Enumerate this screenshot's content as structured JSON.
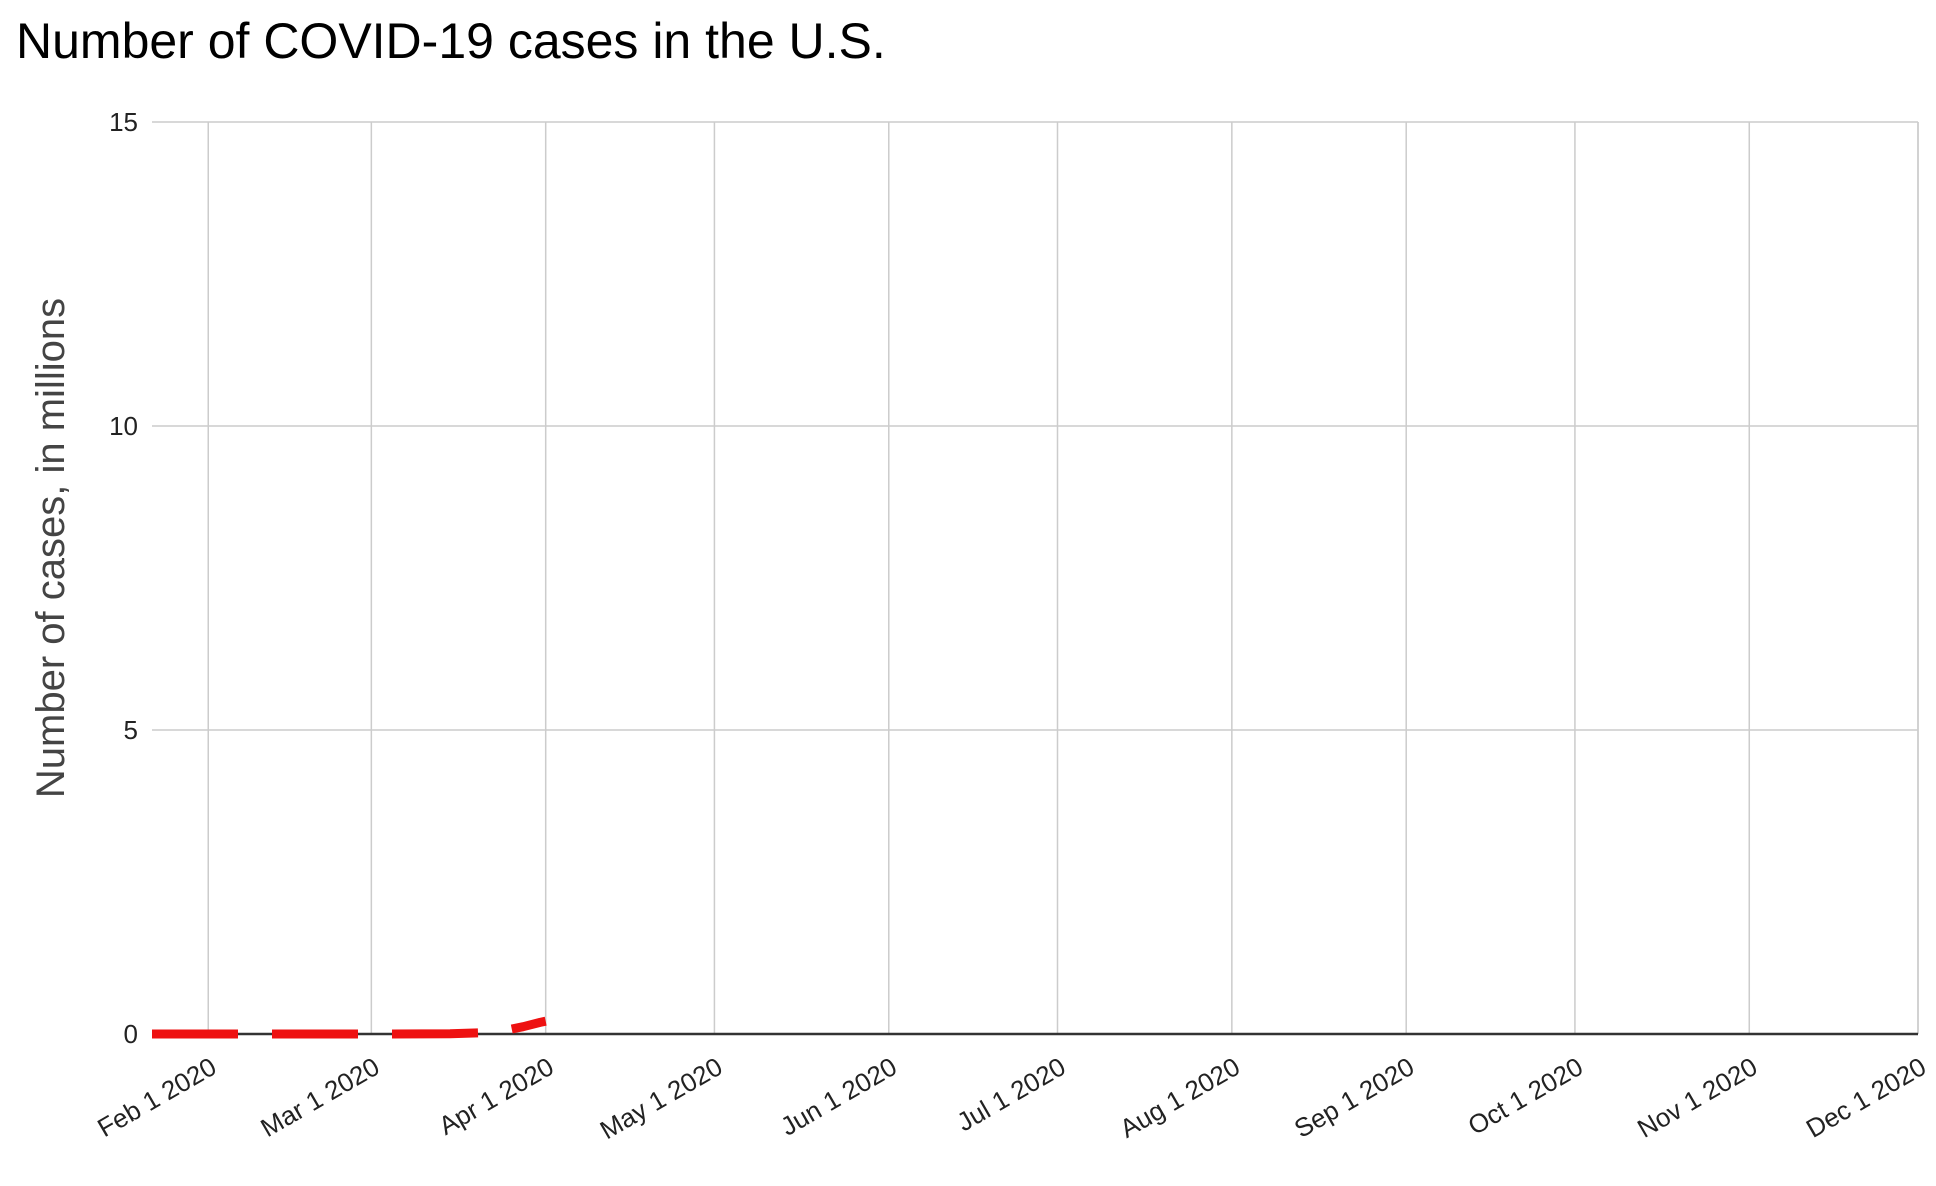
{
  "chart_data": {
    "type": "line",
    "title": "Number of COVID-19 cases in the U.S.",
    "xlabel": "",
    "ylabel": "Number of cases, in millions",
    "x_ticks": [
      "Feb 1 2020",
      "Mar 1 2020",
      "Apr 1 2020",
      "May 1 2020",
      "Jun 1 2020",
      "Jul 1 2020",
      "Aug 1 2020",
      "Sep 1 2020",
      "Oct 1 2020",
      "Nov 1 2020",
      "Dec 1 2020"
    ],
    "x_tick_dates": [
      "2020-02-01",
      "2020-03-01",
      "2020-04-01",
      "2020-05-01",
      "2020-06-01",
      "2020-07-01",
      "2020-08-01",
      "2020-09-01",
      "2020-10-01",
      "2020-11-01",
      "2020-12-01"
    ],
    "xlim": [
      "2020-01-22",
      "2020-12-01"
    ],
    "y_ticks": [
      "0",
      "5",
      "10",
      "15"
    ],
    "ylim": [
      0,
      15
    ],
    "grid": true,
    "legend": "none",
    "series": [
      {
        "color": "#ee1111",
        "line_style": "dashed",
        "x": [
          "2020-01-22",
          "2020-02-01",
          "2020-02-15",
          "2020-03-01",
          "2020-03-10",
          "2020-03-15",
          "2020-03-20",
          "2020-03-25",
          "2020-03-28",
          "2020-03-31",
          "2020-04-01"
        ],
        "y": [
          0,
          0,
          0,
          0,
          0.001,
          0.003,
          0.018,
          0.064,
          0.12,
          0.19,
          0.21
        ]
      }
    ]
  }
}
